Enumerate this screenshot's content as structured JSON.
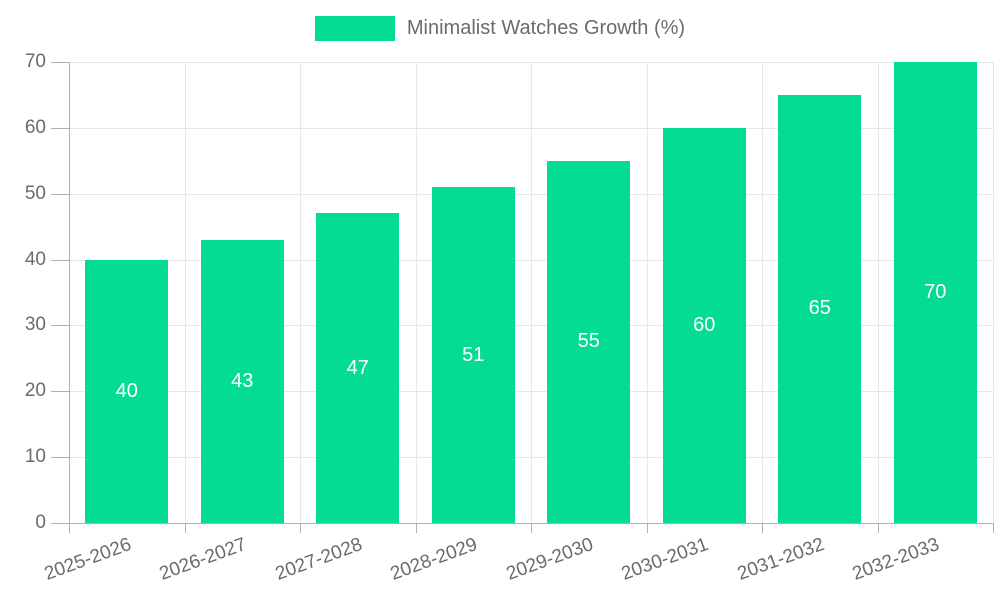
{
  "legend": {
    "label": "Minimalist Watches Growth (%)"
  },
  "chart_data": {
    "type": "bar",
    "title": "Minimalist Watches Growth (%)",
    "legend_label": "Minimalist Watches Growth (%)",
    "legend_position": "top",
    "categories": [
      "2025-2026",
      "2026-2027",
      "2027-2028",
      "2028-2029",
      "2029-2030",
      "2030-2031",
      "2031-2032",
      "2032-2033"
    ],
    "values": [
      40,
      43,
      47,
      51,
      55,
      60,
      65,
      70
    ],
    "value_labels": [
      "40",
      "43",
      "47",
      "51",
      "55",
      "60",
      "65",
      "70"
    ],
    "xlabel": "",
    "ylabel": "",
    "ylim": [
      0,
      70
    ],
    "ytick_step": 10,
    "grid": true
  },
  "colors": {
    "bar": "#04DC94",
    "grid": "#E7E7E7",
    "axis": "#B0B0B0",
    "tick_text": "#6B6B6B",
    "value_label": "#FFFFFF",
    "background": "#FFFFFF"
  }
}
